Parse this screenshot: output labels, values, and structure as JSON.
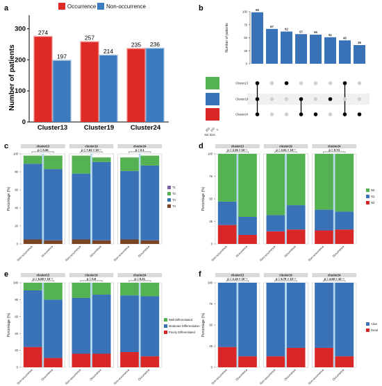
{
  "colors": {
    "occurrence": "#e02a26",
    "non_occurrence": "#3a7cbd",
    "blue": "#3a72b8",
    "green": "#55b252",
    "red": "#d92727",
    "purple": "#7d5fa6",
    "brown": "#7a4424",
    "dot_on": "#000000",
    "dot_off": "#d0d0d0",
    "strip": "#d9d9d9"
  },
  "panel_labels": [
    "a",
    "b",
    "c",
    "d",
    "e",
    "f"
  ],
  "chart_data": [
    {
      "panel": "a",
      "type": "bar",
      "categories": [
        "Cluster13",
        "Cluster19",
        "Cluster24"
      ],
      "series": [
        {
          "name": "Occurrence",
          "values": [
            274,
            257,
            235
          ]
        },
        {
          "name": "Non-occurrence",
          "values": [
            197,
            214,
            236
          ]
        }
      ],
      "xlabel": "",
      "ylabel": "Number of patients",
      "ylim": [
        0,
        330
      ],
      "yticks": [
        0,
        100,
        200,
        300
      ],
      "legend": "top"
    },
    {
      "panel": "b",
      "type": "bar",
      "values": [
        99,
        67,
        62,
        57,
        56,
        51,
        45,
        36
      ],
      "ylabel": "Number of patients",
      "ylim": [
        0,
        100
      ],
      "yticks": [
        0,
        25,
        50,
        75,
        100
      ],
      "sets": [
        "Cluster13",
        "Cluster19",
        "Cluster24"
      ],
      "set_sizes_axis_label": "Set Size",
      "set_sizes_ticks": [
        "200",
        "100",
        "0"
      ],
      "intersections": [
        [
          1,
          1,
          1
        ],
        [
          0,
          0,
          0
        ],
        [
          1,
          0,
          0
        ],
        [
          0,
          1,
          1
        ],
        [
          0,
          0,
          1
        ],
        [
          0,
          1,
          0
        ],
        [
          1,
          0,
          1
        ],
        [
          0,
          0,
          1
        ]
      ]
    },
    {
      "panel": "c",
      "type": "bar",
      "stacked": true,
      "ylabel": "Percentage (%)",
      "ylim": [
        0,
        100
      ],
      "yticks": [
        0,
        20,
        40,
        60,
        80,
        100
      ],
      "categories": [
        "Non-occurrence",
        "Occurrence"
      ],
      "facets": [
        {
          "title": "cluster13",
          "p": "p = 0.36"
        },
        {
          "title": "cluster19",
          "p": "p = 7.62 × 10⁻⁷"
        },
        {
          "title": "cluster24",
          "p": "p = 0.1"
        }
      ],
      "series": [
        {
          "name": "T1",
          "color": "purple",
          "values": [
            [
              0,
              0
            ],
            [
              0,
              0
            ],
            [
              0,
              0
            ]
          ]
        },
        {
          "name": "T2",
          "color": "green",
          "values": [
            [
              9,
              15
            ],
            [
              20,
              5
            ],
            [
              15,
              11
            ]
          ]
        },
        {
          "name": "T3",
          "color": "blue",
          "values": [
            [
              84,
              79
            ],
            [
              73,
              87
            ],
            [
              76,
              83
            ]
          ]
        },
        {
          "name": "T4",
          "color": "brown",
          "values": [
            [
              5,
              4
            ],
            [
              5,
              4
            ],
            [
              5,
              4
            ]
          ]
        }
      ],
      "legend": "right"
    },
    {
      "panel": "d",
      "type": "bar",
      "stacked": true,
      "ylabel": "Percentage (%)",
      "ylim": [
        0,
        100
      ],
      "yticks": [
        0,
        25,
        50,
        75,
        100
      ],
      "categories": [
        "Non-occurrence",
        "Occurrence"
      ],
      "facets": [
        {
          "title": "cluster13",
          "p": "p = 2.15 × 10⁻⁵"
        },
        {
          "title": "cluster19",
          "p": "p = 2.61 × 10⁻²"
        },
        {
          "title": "cluster24",
          "p": "p = 0.74"
        }
      ],
      "series": [
        {
          "name": "N0",
          "color": "green",
          "values": [
            [
              53,
              70
            ],
            [
              68,
              57
            ],
            [
              62,
              64
            ]
          ]
        },
        {
          "name": "N1",
          "color": "blue",
          "values": [
            [
              26,
              20
            ],
            [
              18,
              27
            ],
            [
              23,
              20
            ]
          ]
        },
        {
          "name": "N2",
          "color": "red",
          "values": [
            [
              21,
              10
            ],
            [
              14,
              16
            ],
            [
              15,
              16
            ]
          ]
        }
      ],
      "legend": "right"
    },
    {
      "panel": "e",
      "type": "bar",
      "stacked": true,
      "ylabel": "Percentage (%)",
      "ylim": [
        0,
        100
      ],
      "yticks": [
        0,
        20,
        40,
        60,
        80,
        100
      ],
      "categories": [
        "Non-occurrence",
        "Occurrence"
      ],
      "facets": [
        {
          "title": "cluster13",
          "p": "p = 5.08 × 10⁻⁶"
        },
        {
          "title": "cluster19",
          "p": "p = 0.8"
        },
        {
          "title": "cluster24",
          "p": "p = 0.31"
        }
      ],
      "series": [
        {
          "name": "Well Differentiated",
          "color": "green",
          "values": [
            [
              9,
              20
            ],
            [
              18,
              14
            ],
            [
              15,
              16
            ]
          ]
        },
        {
          "name": "Moderate Differentiation",
          "color": "blue",
          "values": [
            [
              67,
              69
            ],
            [
              66,
              70
            ],
            [
              67,
              71
            ]
          ]
        },
        {
          "name": "Poorly Differentiated",
          "color": "red",
          "values": [
            [
              24,
              11
            ],
            [
              16,
              16
            ],
            [
              18,
              13
            ]
          ]
        }
      ],
      "legend": "right"
    },
    {
      "panel": "f",
      "type": "bar",
      "stacked": true,
      "ylabel": "Percentage (%)",
      "ylim": [
        0,
        100
      ],
      "yticks": [
        0,
        25,
        50,
        75,
        100
      ],
      "categories": [
        "Non-occurrence",
        "Occurrence"
      ],
      "facets": [
        {
          "title": "cluster13",
          "p": "p = 2.15 × 10⁻⁴"
        },
        {
          "title": "cluster19",
          "p": "p = 6.70 × 10⁻⁴"
        },
        {
          "title": "cluster24",
          "p": "p = 4.60 × 10⁻⁴"
        }
      ],
      "series": [
        {
          "name": "Alive",
          "color": "blue",
          "values": [
            [
              76,
              87
            ],
            [
              87,
              77
            ],
            [
              77,
              87
            ]
          ]
        },
        {
          "name": "Dead",
          "color": "red",
          "values": [
            [
              24,
              13
            ],
            [
              13,
              23
            ],
            [
              23,
              13
            ]
          ]
        }
      ],
      "legend": "right"
    }
  ]
}
